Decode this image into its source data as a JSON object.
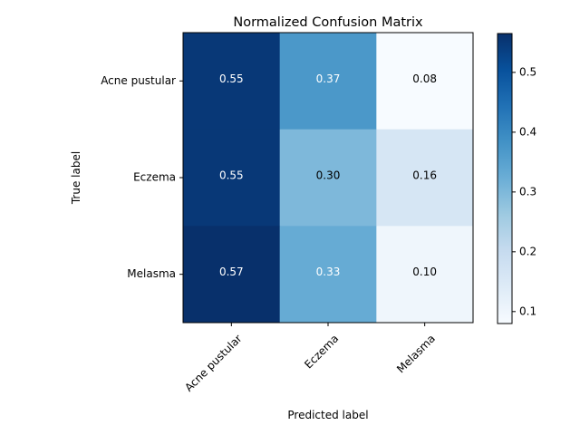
{
  "chart_data": {
    "type": "heatmap",
    "title": "Normalized Confusion Matrix",
    "xlabel": "Predicted label",
    "ylabel": "True label",
    "x_categories": [
      "Acne pustular",
      "Eczema",
      "Melasma"
    ],
    "y_categories": [
      "Acne pustular",
      "Eczema",
      "Melasma"
    ],
    "values": [
      [
        0.55,
        0.37,
        0.08
      ],
      [
        0.55,
        0.3,
        0.16
      ],
      [
        0.57,
        0.33,
        0.1
      ]
    ],
    "value_labels": [
      [
        "0.55",
        "0.37",
        "0.08"
      ],
      [
        "0.55",
        "0.30",
        "0.16"
      ],
      [
        "0.57",
        "0.33",
        "0.10"
      ]
    ],
    "colormap": "Blues",
    "colorbar": {
      "vmin": 0.08,
      "vmax": 0.565,
      "ticks": [
        0.1,
        0.2,
        0.3,
        0.4,
        0.5
      ],
      "tick_labels": [
        "0.1",
        "0.2",
        "0.3",
        "0.4",
        "0.5"
      ]
    },
    "x_tick_rotation_deg": 45
  }
}
